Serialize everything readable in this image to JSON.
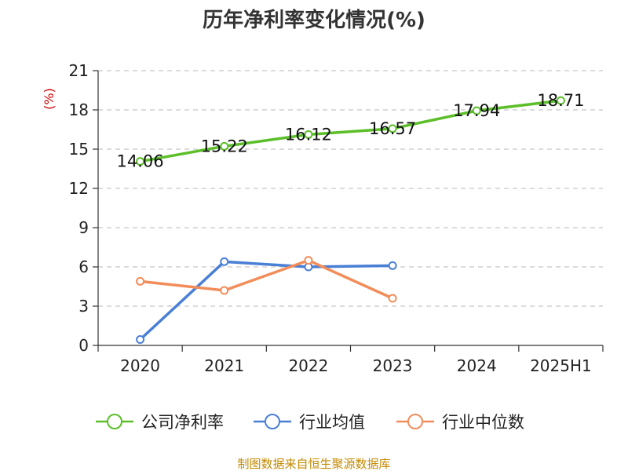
{
  "chart_data": {
    "type": "line",
    "title": "历年净利率变化情况(%)",
    "ylabel": "(%)",
    "xlabel": "",
    "categories": [
      "2020",
      "2021",
      "2022",
      "2023",
      "2024",
      "2025H1"
    ],
    "ylim": [
      0,
      21
    ],
    "yticks": [
      0,
      3,
      6,
      9,
      12,
      15,
      18,
      21
    ],
    "grid": true,
    "legend_position": "bottom",
    "series": [
      {
        "name": "公司净利率",
        "color": "#5cbf2a",
        "values": [
          14.06,
          15.22,
          16.12,
          16.57,
          17.94,
          18.71
        ],
        "labels": [
          "14.06",
          "15.22",
          "16.12",
          "16.57",
          "17.94",
          "18.71"
        ]
      },
      {
        "name": "行业均值",
        "color": "#4a7fd6",
        "values": [
          0.45,
          6.4,
          6.0,
          6.1,
          null,
          null
        ]
      },
      {
        "name": "行业中位数",
        "color": "#f28d5a",
        "values": [
          4.9,
          4.2,
          6.5,
          3.6,
          null,
          null
        ]
      }
    ],
    "source": "制图数据来自恒生聚源数据库"
  }
}
